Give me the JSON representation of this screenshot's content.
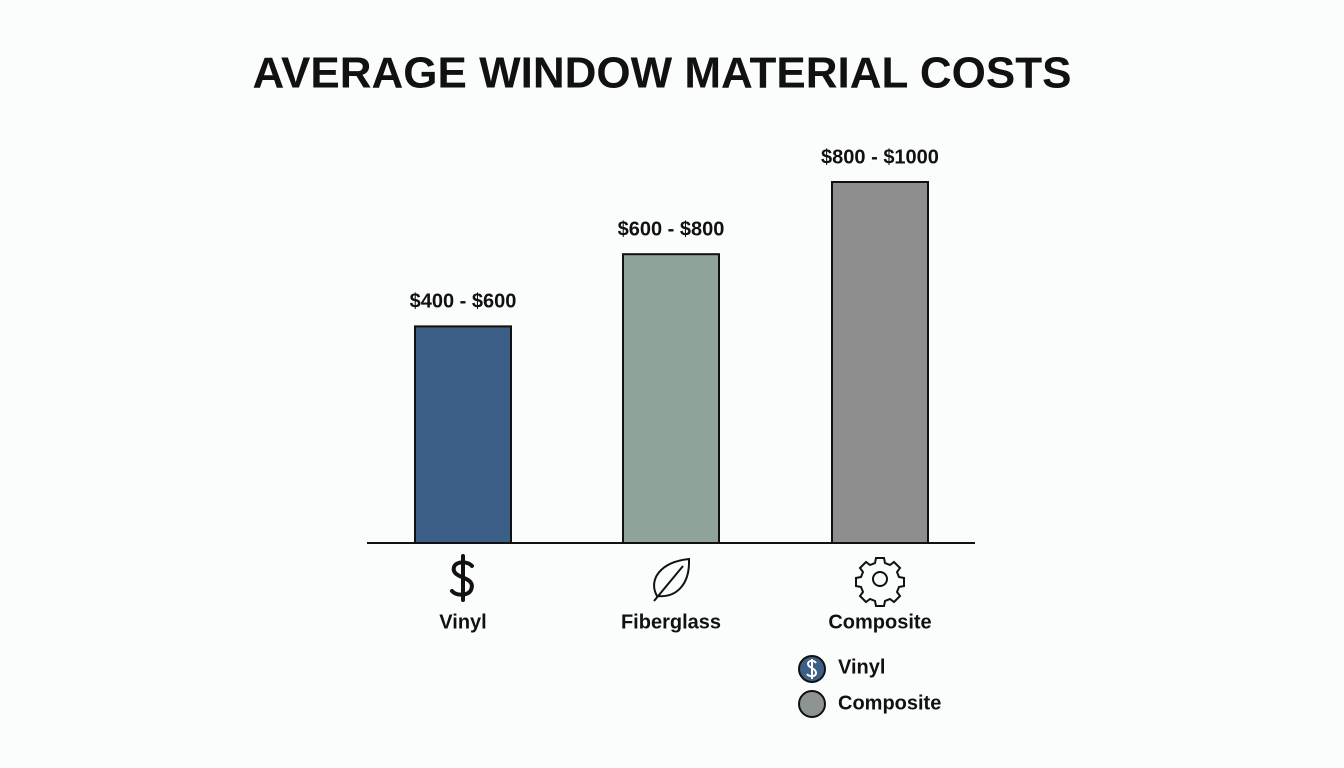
{
  "chart_data": {
    "type": "range-bar",
    "title": "AVERAGE WINDOW MATERIAL COSTS",
    "categories": [
      "Vinyl",
      "Fiberglass",
      "Composite"
    ],
    "values": [
      [
        400,
        600
      ],
      [
        600,
        800
      ],
      [
        800,
        1000
      ]
    ],
    "value_labels": [
      "$400 - $600",
      "$600 - $800",
      "$800 - $1000"
    ],
    "colors": [
      "#3b5f86",
      "#8fa39a",
      "#8e8e8e"
    ],
    "legend": [
      {
        "name": "Vinyl",
        "color": "#3b5f86"
      },
      {
        "name": "Composite",
        "color": "#8e9490"
      }
    ]
  }
}
